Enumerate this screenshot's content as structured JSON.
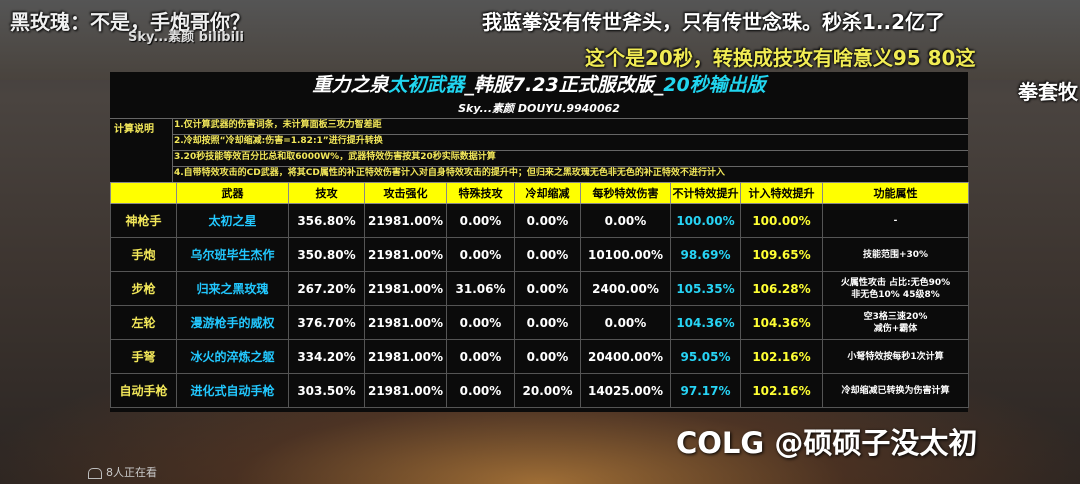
{
  "danmaku": [
    "黑玫瑰：不是，手炮哥你？",
    "我蓝拳没有传世斧头，只有传世念珠。秒杀1..2亿了",
    "这个是20秒，转换成技攻有啥意义95  80这",
    "拳套牧"
  ],
  "overlay_logo": "Sky...素颜 bilibili",
  "sheet": {
    "title_part1": "重力之泉",
    "title_part2": "太初武器",
    "title_part3": "_韩服7.23正式服改版_",
    "title_part4": "20秒输出版",
    "subtitle": "Sky...素颜 DOUYU.9940062",
    "note_label": "计算说明",
    "notes": [
      "1.仅计算武器的伤害词条，未计算面板三攻力智差距",
      "2.冷却按照“冷却缩减:伤害=1.82:1”进行提升转换",
      "3.20秒技能等效百分比总和取6000W%，武器特效伤害按其20秒实际数据计算",
      "4.自带特效攻击的CD武器，将其CD属性的补正特效伤害计入对自身特效攻击的提升中；但归来之黑玫瑰无色非无色的补正特效不进行计入"
    ],
    "headers": [
      "",
      "武器",
      "技攻",
      "攻击强化",
      "特殊技攻",
      "冷却缩减",
      "每秒特效伤害",
      "不计特效提升",
      "计入特效提升",
      "功能属性"
    ],
    "rows": [
      {
        "cls": "神枪手",
        "weapon": "太初之星",
        "skill": "356.80%",
        "atk": "21981.00%",
        "special": "0.00%",
        "cd": "0.00%",
        "dps": "0.00%",
        "without": "100.00%",
        "with": "100.00%",
        "feat": [
          "-"
        ]
      },
      {
        "cls": "手炮",
        "weapon": "乌尔班毕生杰作",
        "skill": "350.80%",
        "atk": "21981.00%",
        "special": "0.00%",
        "cd": "0.00%",
        "dps": "10100.00%",
        "without": "98.69%",
        "with": "109.65%",
        "feat": [
          "技能范围+30%"
        ]
      },
      {
        "cls": "步枪",
        "weapon": "归来之黑玫瑰",
        "skill": "267.20%",
        "atk": "21981.00%",
        "special": "31.06%",
        "cd": "0.00%",
        "dps": "2400.00%",
        "without": "105.35%",
        "with": "106.28%",
        "feat": [
          "火属性攻击 占比:无色90%",
          "非无色10% 45级8%"
        ]
      },
      {
        "cls": "左轮",
        "weapon": "漫游枪手的威权",
        "skill": "376.70%",
        "atk": "21981.00%",
        "special": "0.00%",
        "cd": "0.00%",
        "dps": "0.00%",
        "without": "104.36%",
        "with": "104.36%",
        "feat": [
          "空3格三速20%",
          "减伤+霸体"
        ]
      },
      {
        "cls": "手弩",
        "weapon": "冰火的淬炼之躯",
        "skill": "334.20%",
        "atk": "21981.00%",
        "special": "0.00%",
        "cd": "0.00%",
        "dps": "20400.00%",
        "without": "95.05%",
        "with": "102.16%",
        "feat": [
          "小弩特效按每秒1次计算"
        ]
      },
      {
        "cls": "自动手枪",
        "weapon": "进化式自动手枪",
        "skill": "303.50%",
        "atk": "21981.00%",
        "special": "0.00%",
        "cd": "20.00%",
        "dps": "14025.00%",
        "without": "97.17%",
        "with": "102.16%",
        "feat": [
          "冷却缩减已转换为伤害计算"
        ]
      }
    ]
  },
  "watermark": "COLG @硕硕子没太初",
  "viewer_count": "8人正在看",
  "colors": {
    "yellow_header": "#ffff00",
    "cyan": "#21d6f0",
    "note_yellow": "#f3e85a"
  }
}
